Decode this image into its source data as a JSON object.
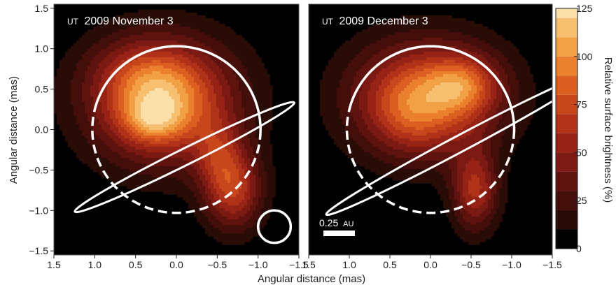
{
  "chart_data": {
    "type": "heatmap",
    "panels": [
      {
        "title": "UT 2009 November 3",
        "title_prefix": "UT",
        "title_main": "2009 November 3",
        "xlim": [
          1.5,
          -1.5
        ],
        "ylim": [
          -1.55,
          1.55
        ],
        "features": {
          "stellar_disk": {
            "center": [
              0.0,
              0.0
            ],
            "radius": 1.03
          },
          "beam_circle": {
            "center": [
              -1.2,
              -1.2
            ],
            "radius": 0.2
          },
          "orbit_ellipse": {
            "center": [
              -0.1,
              -0.34
            ],
            "semi_axes": [
              1.5,
              0.1
            ],
            "angle_deg": 26.5
          }
        },
        "blobs": [
          {
            "x": 0.15,
            "y": 0.35,
            "sx": 0.65,
            "sy": 0.55,
            "amp": 80
          },
          {
            "x": 0.2,
            "y": 0.35,
            "sx": 0.4,
            "sy": 0.35,
            "amp": 30
          },
          {
            "x": 0.45,
            "y": 0.7,
            "sx": 0.45,
            "sy": 0.3,
            "amp": 20
          },
          {
            "x": 0.3,
            "y": 0.1,
            "sx": 0.25,
            "sy": 0.18,
            "amp": 30
          },
          {
            "x": -0.7,
            "y": -0.75,
            "sx": 0.25,
            "sy": 0.35,
            "amp": 65
          },
          {
            "x": -0.5,
            "y": -0.3,
            "sx": 0.2,
            "sy": 0.3,
            "amp": 30
          }
        ]
      },
      {
        "title": "UT 2009 December 3",
        "title_prefix": "UT",
        "title_main": "2009 December 3",
        "xlim": [
          1.5,
          -1.5
        ],
        "ylim": [
          -1.55,
          1.55
        ],
        "features": {
          "stellar_disk": {
            "center": [
              0.0,
              0.0
            ],
            "radius": 1.03
          },
          "orbit_ellipse": {
            "center": [
              -0.35,
              -0.18
            ],
            "semi_axes": [
              1.85,
              0.1
            ],
            "angle_deg": 28
          }
        },
        "blobs": [
          {
            "x": 0.05,
            "y": 0.4,
            "sx": 0.65,
            "sy": 0.5,
            "amp": 80
          },
          {
            "x": -0.4,
            "y": 0.55,
            "sx": 0.3,
            "sy": 0.25,
            "amp": 45
          },
          {
            "x": 0.25,
            "y": 0.2,
            "sx": 0.35,
            "sy": 0.35,
            "amp": 25
          },
          {
            "x": -0.55,
            "y": -0.75,
            "sx": 0.2,
            "sy": 0.35,
            "amp": 60
          }
        ]
      }
    ],
    "xlabel": "Angular distance (mas)",
    "ylabel": "Angular distance (mas)",
    "x_ticks": [
      "1.5",
      "1.0",
      "0.5",
      "0.0",
      "−0.5",
      "−1.0",
      "−1.5"
    ],
    "x_tick_values": [
      1.5,
      1.0,
      0.5,
      0.0,
      -0.5,
      -1.0,
      -1.5
    ],
    "y_ticks": [
      "1.5",
      "1.0",
      "0.5",
      "0.0",
      "−0.5",
      "−1.0",
      "−1.5"
    ],
    "y_tick_values": [
      1.5,
      1.0,
      0.5,
      0.0,
      -0.5,
      -1.0,
      -1.5
    ],
    "scale_bar": {
      "label": "0.25",
      "unit": "AU"
    },
    "colorbar": {
      "label": "Relative surface brightness (%)",
      "range": [
        0,
        125
      ],
      "ticks": [
        "125",
        "100",
        "75",
        "50",
        "25",
        "0"
      ],
      "tick_values": [
        125,
        100,
        75,
        50,
        25,
        0
      ],
      "levels": [
        0,
        10,
        20,
        30,
        40,
        50,
        60,
        70,
        80,
        90,
        100,
        110,
        120
      ],
      "colors": [
        "#000000",
        "#2a0c07",
        "#440f0a",
        "#5e130e",
        "#7a1a12",
        "#962315",
        "#b03218",
        "#c8461c",
        "#dc5f22",
        "#ea7f2e",
        "#f2a045",
        "#f7c070",
        "#fbdfa8"
      ]
    }
  }
}
